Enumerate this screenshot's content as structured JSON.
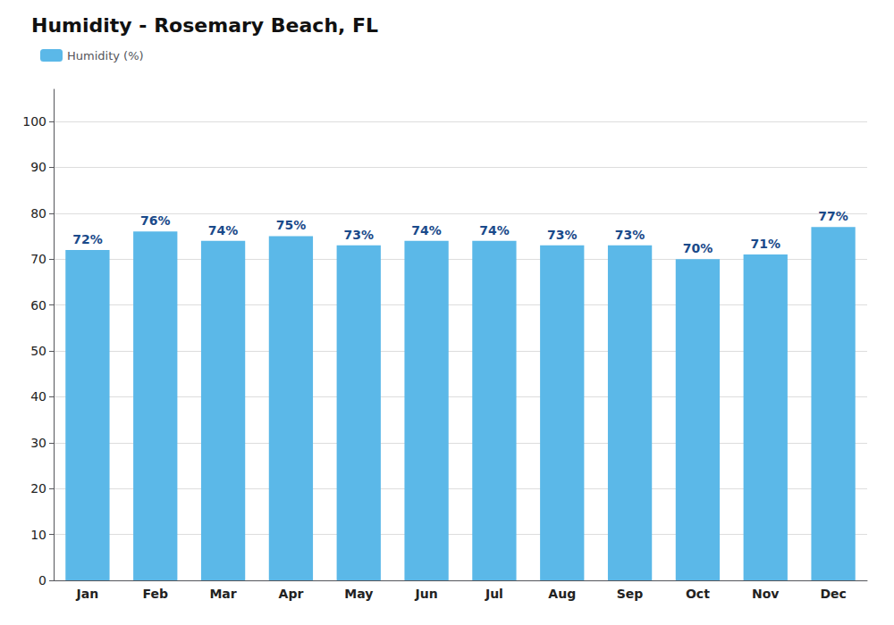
{
  "chart_data": {
    "type": "bar",
    "title": "Humidity - Rosemary Beach, FL",
    "categories": [
      "Jan",
      "Feb",
      "Mar",
      "Apr",
      "May",
      "Jun",
      "Jul",
      "Aug",
      "Sep",
      "Oct",
      "Nov",
      "Dec"
    ],
    "series": [
      {
        "name": "Humidity (%)",
        "color": "#5bb8e8",
        "values": [
          72,
          76,
          74,
          75,
          73,
          74,
          74,
          73,
          73,
          70,
          71,
          77
        ],
        "value_labels": [
          "72%",
          "76%",
          "74%",
          "75%",
          "73%",
          "74%",
          "74%",
          "73%",
          "73%",
          "70%",
          "71%",
          "77%"
        ]
      }
    ],
    "ylim": [
      0,
      107
    ],
    "yticks": [
      0,
      10,
      20,
      30,
      40,
      50,
      60,
      70,
      80,
      90,
      100
    ],
    "grid": true,
    "legend": "upper left",
    "data_labels": true
  }
}
